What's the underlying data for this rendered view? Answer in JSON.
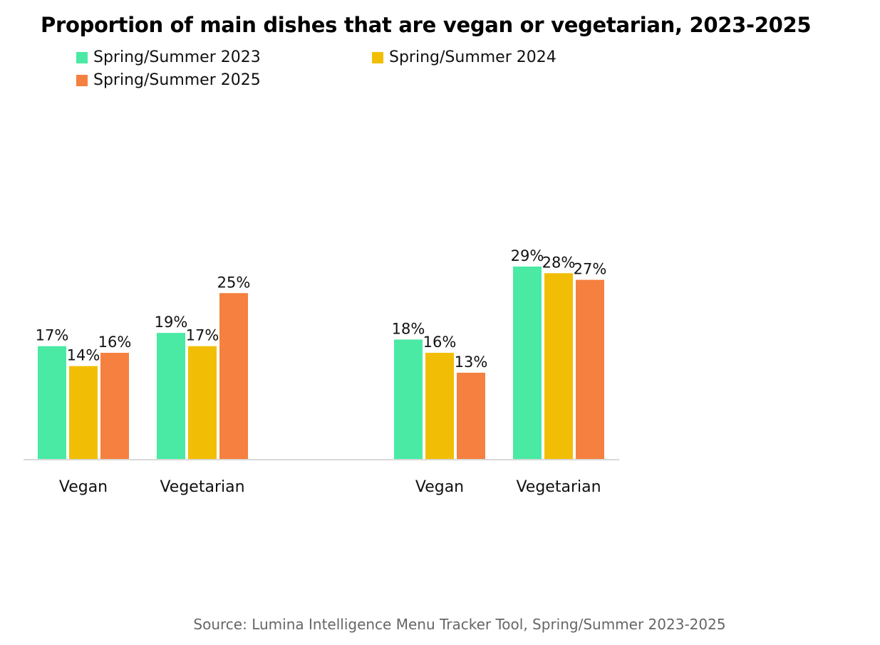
{
  "chart_data": {
    "type": "bar",
    "title": "Proportion of main dishes that are vegan or vegetarian, 2023-2025",
    "categories": [
      "Vegan",
      "Vegetarian",
      "Vegan",
      "Vegetarian"
    ],
    "series": [
      {
        "name": "Spring/Summer 2023",
        "color": "#4AEAA4",
        "values": [
          17,
          19,
          18,
          29
        ]
      },
      {
        "name": "Spring/Summer 2024",
        "color": "#F2BE05",
        "values": [
          14,
          17,
          16,
          28
        ]
      },
      {
        "name": "Spring/Summer 2025",
        "color": "#F58040",
        "values": [
          16,
          25,
          13,
          27
        ]
      }
    ],
    "value_suffix": "%",
    "ylim": [
      0,
      30
    ],
    "grid": false,
    "legend_placement": "top-left",
    "source": "Source: Lumina Intelligence Menu Tracker Tool, Spring/Summer 2023-2025"
  }
}
